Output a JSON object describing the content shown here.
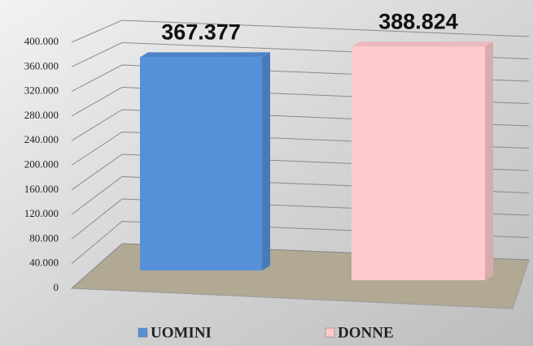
{
  "chart_data": {
    "type": "bar3d",
    "series": [
      {
        "name": "UOMINI",
        "color": "#5590d8",
        "values": [
          367377
        ],
        "value_labels": [
          "367.377"
        ]
      },
      {
        "name": "DONNE",
        "color": "#ffc9cd",
        "values": [
          388824
        ],
        "value_labels": [
          "388.824"
        ]
      }
    ],
    "ylim": [
      0,
      400000
    ],
    "yticks": [
      {
        "value": 0,
        "label": "0"
      },
      {
        "value": 40000,
        "label": "40.000"
      },
      {
        "value": 80000,
        "label": "80.000"
      },
      {
        "value": 120000,
        "label": "120.000"
      },
      {
        "value": 160000,
        "label": "160.000"
      },
      {
        "value": 200000,
        "label": "200.000"
      },
      {
        "value": 240000,
        "label": "240.000"
      },
      {
        "value": 280000,
        "label": "280.000"
      },
      {
        "value": 320000,
        "label": "320.000"
      },
      {
        "value": 360000,
        "label": "360.000"
      },
      {
        "value": 400000,
        "label": "400.000"
      }
    ],
    "grid": true,
    "legend": "bottom"
  }
}
